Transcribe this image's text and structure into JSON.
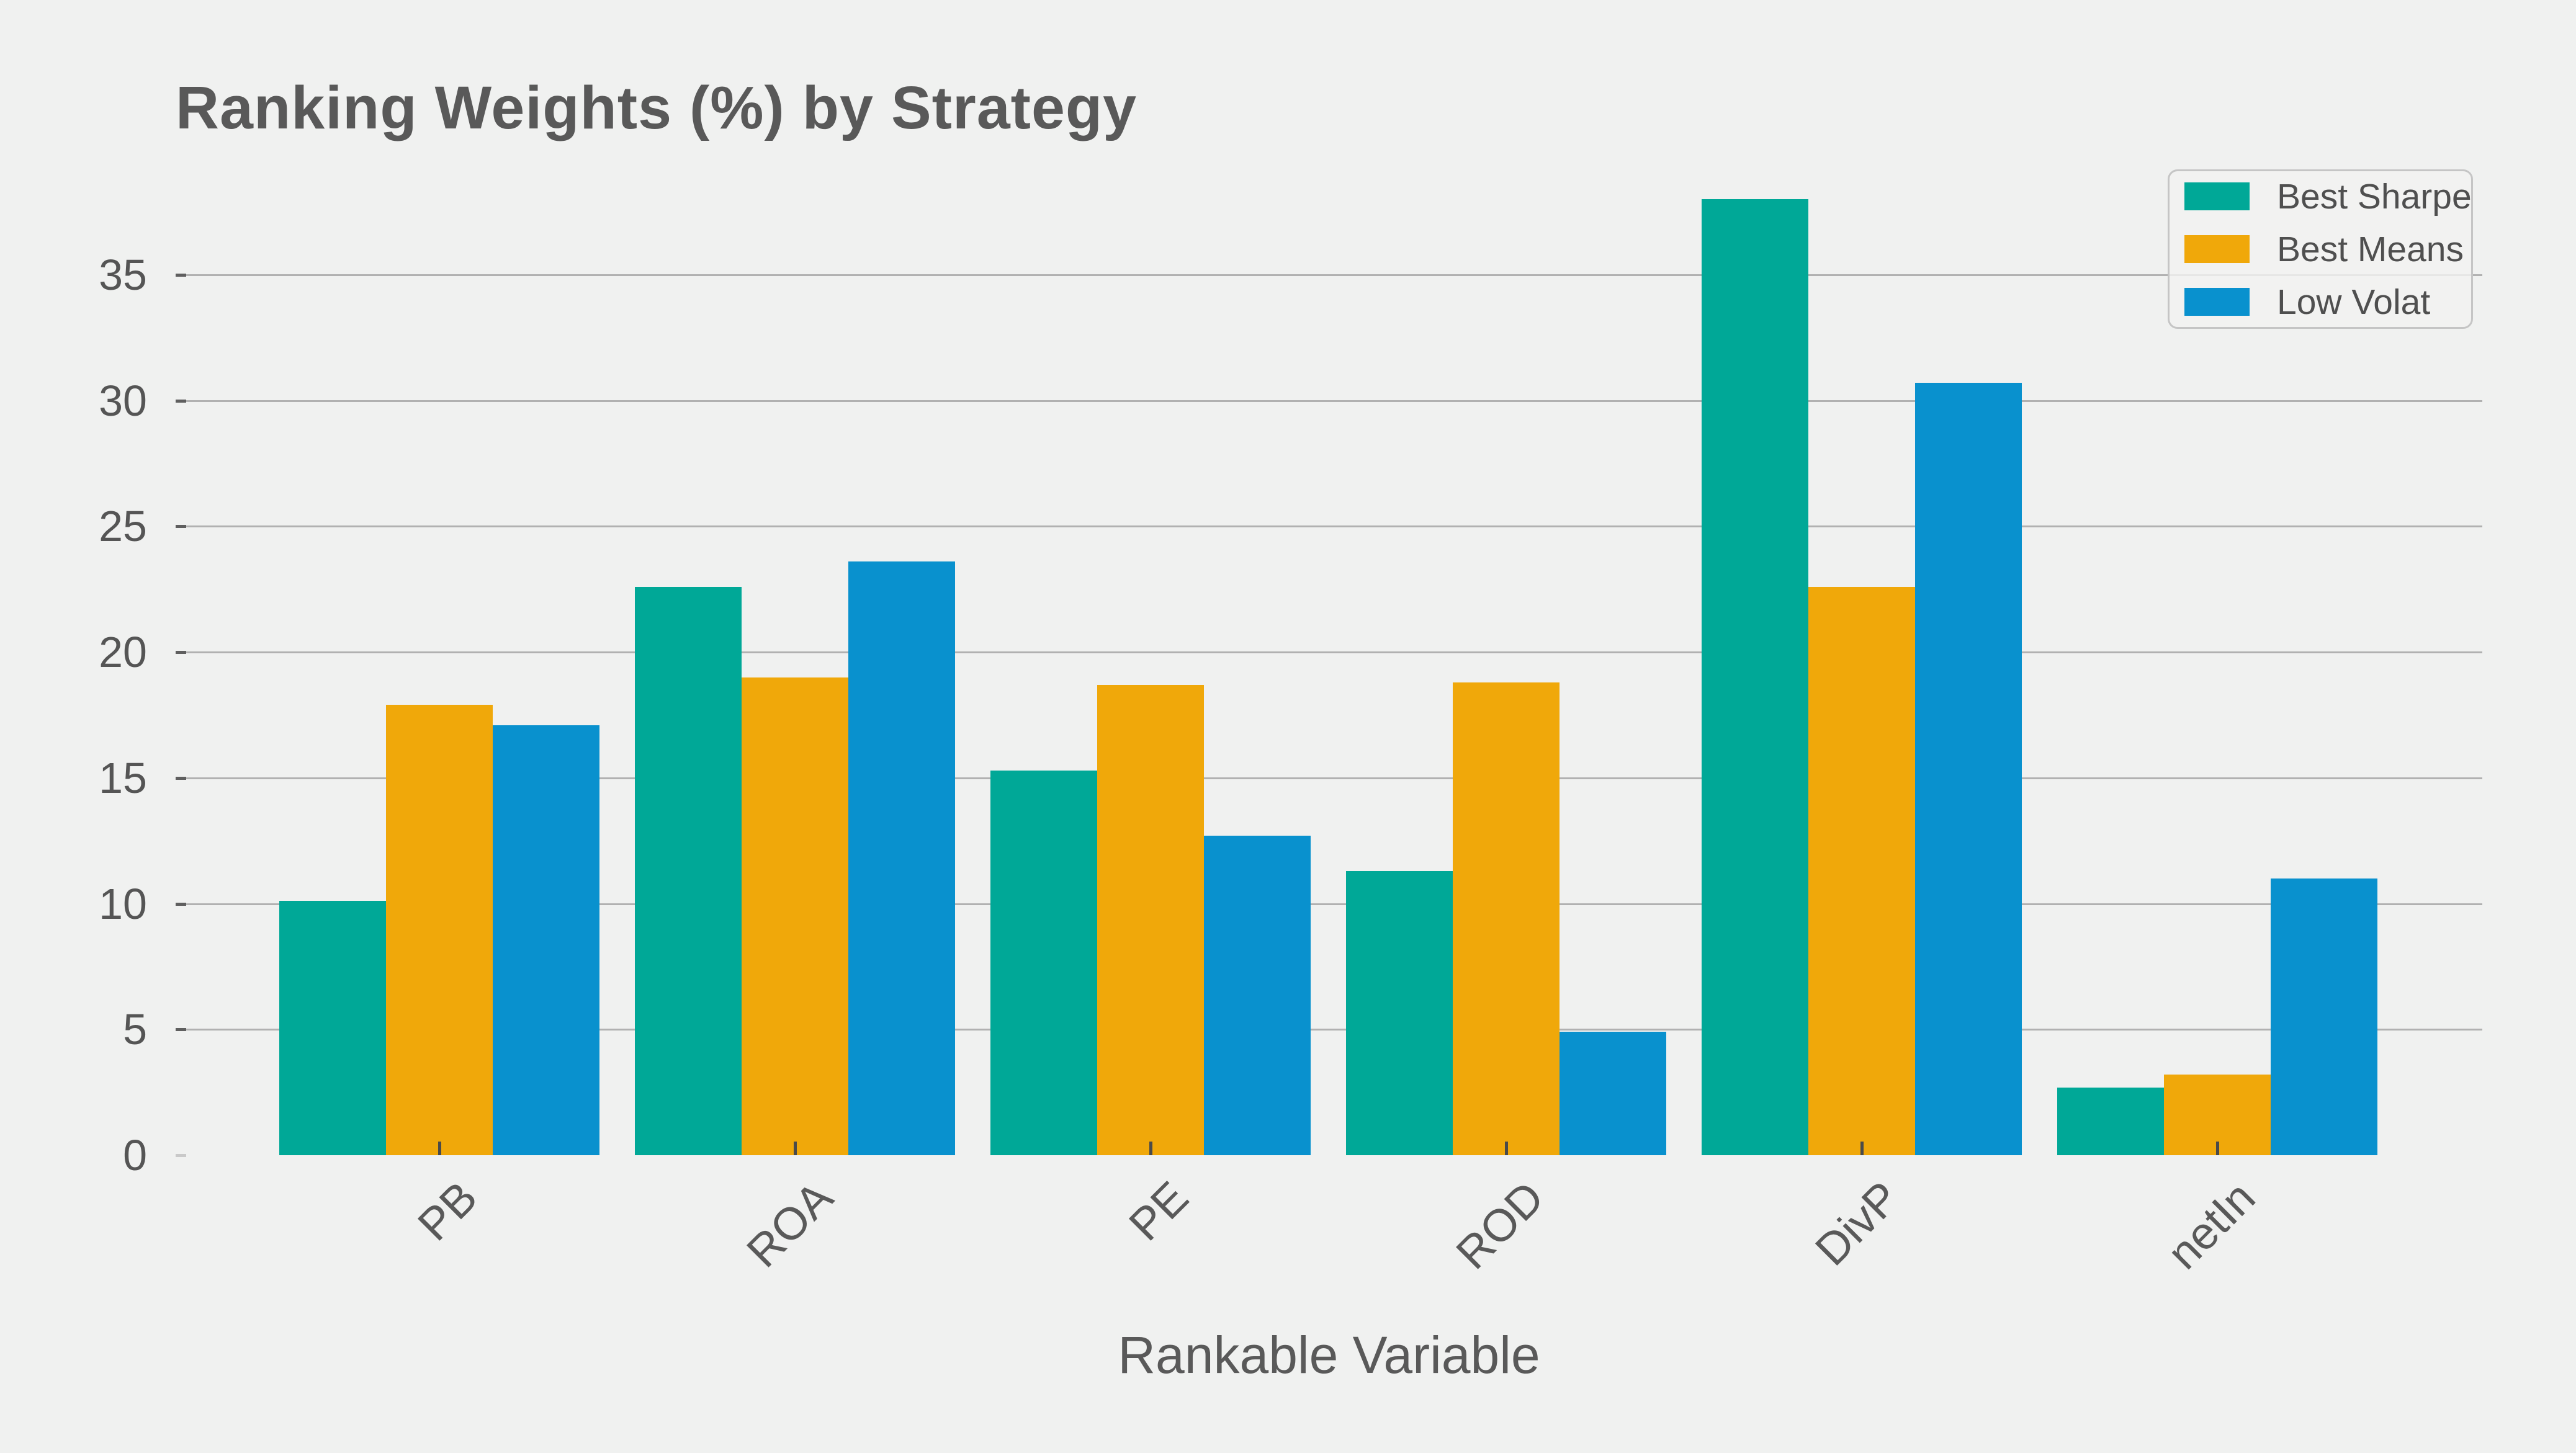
{
  "chart_data": {
    "type": "bar",
    "title": "Ranking Weights (%) by Strategy",
    "xlabel": "Rankable Variable",
    "ylabel": "",
    "categories": [
      "PB",
      "ROA",
      "PE",
      "ROD",
      "DivP",
      "netIn"
    ],
    "series": [
      {
        "name": "Best Sharpe",
        "color": "#00A897",
        "values": [
          10.1,
          22.6,
          15.3,
          11.3,
          38.0,
          2.7
        ]
      },
      {
        "name": "Best Means",
        "color": "#F0A80A",
        "values": [
          17.9,
          19.0,
          18.7,
          18.8,
          22.6,
          3.2
        ]
      },
      {
        "name": "Low Volat",
        "color": "#0991CE",
        "values": [
          17.1,
          23.6,
          12.7,
          4.9,
          30.7,
          11.0
        ]
      }
    ],
    "yticks": [
      0,
      5,
      10,
      15,
      20,
      25,
      30,
      35
    ],
    "ylim": [
      0,
      39.9
    ],
    "grid": "horizontal",
    "legend_position": "upper right",
    "colors": {
      "background": "#F0F1F0",
      "gridline": "#B1B1B1",
      "text": "#595959",
      "tick": "#555555"
    }
  }
}
